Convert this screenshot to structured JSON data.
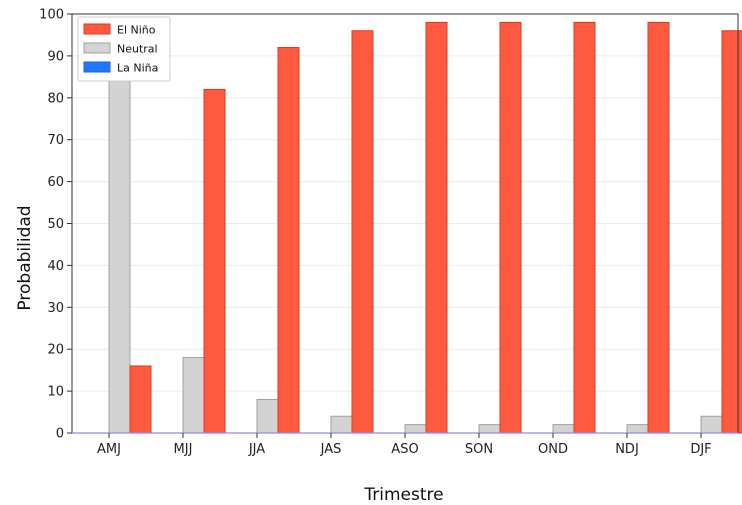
{
  "chart_data": {
    "type": "bar",
    "title": "",
    "xlabel": "Trimestre",
    "ylabel": "Probabilidad",
    "categories": [
      "AMJ",
      "MJJ",
      "JJA",
      "JAS",
      "ASO",
      "SON",
      "OND",
      "NDJ",
      "DJF"
    ],
    "series": [
      {
        "name": "La Niña",
        "color": "#1f77ff",
        "values": [
          0,
          0,
          0,
          0,
          0,
          0,
          0,
          0,
          0
        ]
      },
      {
        "name": "Neutral",
        "color": "#d3d3d3",
        "values": [
          84,
          18,
          8,
          4,
          2,
          2,
          2,
          2,
          4
        ]
      },
      {
        "name": "El Niño",
        "color": "#ff5a40",
        "values": [
          16,
          82,
          92,
          96,
          98,
          98,
          98,
          98,
          96
        ]
      }
    ],
    "ylim": [
      0,
      100
    ],
    "yticks": [
      0,
      10,
      20,
      30,
      40,
      50,
      60,
      70,
      80,
      90,
      100
    ],
    "grid": true,
    "legend_position": "top-left",
    "legend_order": [
      "El Niño",
      "Neutral",
      "La Niña"
    ]
  }
}
